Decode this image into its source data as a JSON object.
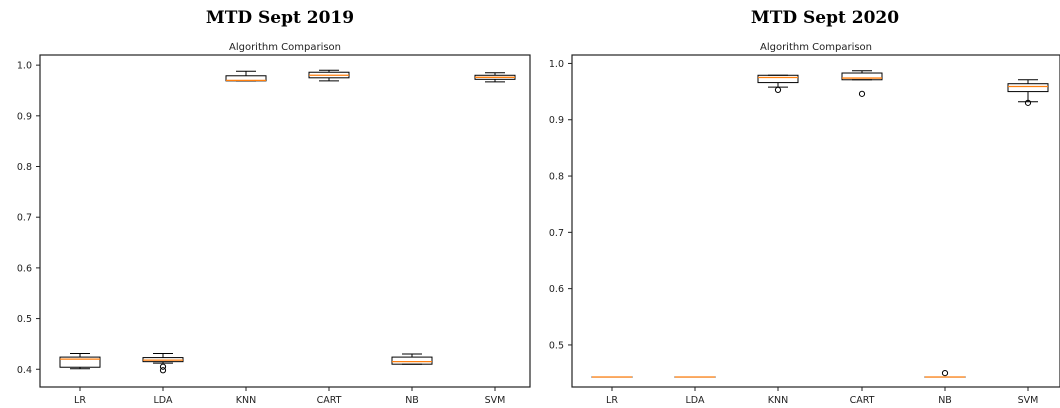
{
  "panels": [
    {
      "title": "MTD Sept 2019",
      "chart_data": {
        "type": "boxplot",
        "title": "Algorithm Comparison",
        "categories": [
          "LR",
          "LDA",
          "KNN",
          "CART",
          "NB",
          "SVM"
        ],
        "yticks": [
          "0.4",
          "0.5",
          "0.6",
          "0.7",
          "0.8",
          "0.9",
          "1.0"
        ],
        "ylim": [
          0.365,
          1.02
        ],
        "boxes": [
          {
            "whislo": 0.401,
            "q1": 0.404,
            "med": 0.42,
            "q3": 0.424,
            "whishi": 0.431,
            "fliers": []
          },
          {
            "whislo": 0.412,
            "q1": 0.415,
            "med": 0.418,
            "q3": 0.423,
            "whishi": 0.431,
            "fliers": [
              0.398,
              0.405
            ]
          },
          {
            "whislo": 0.969,
            "q1": 0.969,
            "med": 0.97,
            "q3": 0.979,
            "whishi": 0.988,
            "fliers": []
          },
          {
            "whislo": 0.969,
            "q1": 0.975,
            "med": 0.98,
            "q3": 0.986,
            "whishi": 0.99,
            "fliers": []
          },
          {
            "whislo": 0.41,
            "q1": 0.41,
            "med": 0.415,
            "q3": 0.424,
            "whishi": 0.43,
            "fliers": []
          },
          {
            "whislo": 0.967,
            "q1": 0.972,
            "med": 0.976,
            "q3": 0.98,
            "whishi": 0.985,
            "fliers": []
          }
        ],
        "grid": false,
        "box_color": "#000000",
        "median_color": "#ff7f0e"
      }
    },
    {
      "title": "MTD Sept 2020",
      "chart_data": {
        "type": "boxplot",
        "title": "Algorithm Comparison",
        "categories": [
          "LR",
          "LDA",
          "KNN",
          "CART",
          "NB",
          "SVM"
        ],
        "yticks": [
          "0.5",
          "0.6",
          "0.7",
          "0.8",
          "0.9",
          "1.0"
        ],
        "ylim": [
          0.4253,
          1.015
        ],
        "boxes": [
          {
            "whislo": 0.443,
            "q1": 0.443,
            "med": 0.443,
            "q3": 0.443,
            "whishi": 0.443,
            "fliers": []
          },
          {
            "whislo": 0.443,
            "q1": 0.443,
            "med": 0.443,
            "q3": 0.443,
            "whishi": 0.443,
            "fliers": []
          },
          {
            "whislo": 0.958,
            "q1": 0.966,
            "med": 0.975,
            "q3": 0.979,
            "whishi": 0.979,
            "fliers": [
              0.953
            ]
          },
          {
            "whislo": 0.971,
            "q1": 0.971,
            "med": 0.974,
            "q3": 0.983,
            "whishi": 0.987,
            "fliers": [
              0.946
            ]
          },
          {
            "whislo": 0.443,
            "q1": 0.443,
            "med": 0.443,
            "q3": 0.443,
            "whishi": 0.443,
            "fliers": [
              0.45
            ]
          },
          {
            "whislo": 0.932,
            "q1": 0.95,
            "med": 0.959,
            "q3": 0.964,
            "whishi": 0.971,
            "fliers": [
              0.93
            ]
          }
        ],
        "grid": false,
        "box_color": "#000000",
        "median_color": "#ff7f0e"
      }
    }
  ]
}
